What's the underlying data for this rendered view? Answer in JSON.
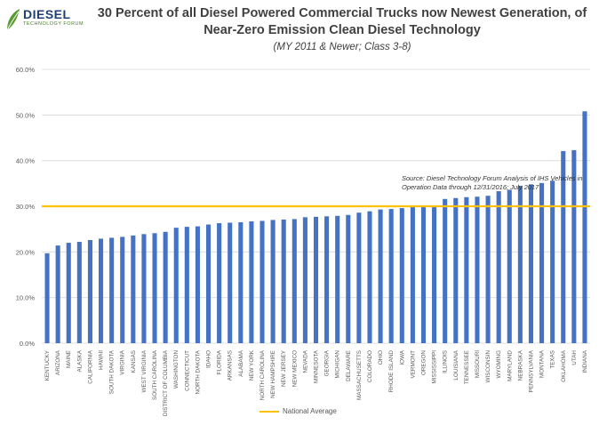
{
  "logo": {
    "word": "DIESEL",
    "sub": "TECHNOLOGY FORUM"
  },
  "title_line1": "30 Percent of all Diesel Powered Commercial Trucks now Newest Generation, of",
  "title_line2": "Near-Zero Emission Clean Diesel Technology",
  "subtitle": "(MY 2011 & Newer; Class 3-8)",
  "source_text": "Source:  Diesel Technology Forum Analysis of IHS Vehicles in Operation Data through 12/31/2016; July 2017",
  "legend_label": "National Average",
  "colors": {
    "bar": "#4472c4",
    "average_line": "#ffc000",
    "grid": "#d9d9d9",
    "axis_text": "#595959"
  },
  "chart_data": {
    "type": "bar",
    "title": "30 Percent of all Diesel Powered Commercial Trucks now Newest Generation, of Near-Zero Emission Clean Diesel Technology",
    "subtitle": "(MY 2011 & Newer; Class 3-8)",
    "xlabel": "",
    "ylabel": "",
    "ylim": [
      0,
      60
    ],
    "y_ticks": [
      0,
      10,
      20,
      30,
      40,
      50,
      60
    ],
    "y_tick_labels": [
      "0.0%",
      "10.0%",
      "20.0%",
      "30.0%",
      "40.0%",
      "50.0%",
      "60.0%"
    ],
    "grid": true,
    "legend_position": "bottom",
    "national_average": 30.0,
    "categories": [
      "KENTUCKY",
      "ARIZONA",
      "MAINE",
      "ALASKA",
      "CALIFORNIA",
      "HAWAII",
      "SOUTH DAKOTA",
      "VIRGINIA",
      "KANSAS",
      "WEST VIRGINIA",
      "SOUTH CAROLINA",
      "DISTRICT OF COLUMBIA",
      "WASHINGTON",
      "CONNECTICUT",
      "NORTH DAKOTA",
      "IDAHO",
      "FLORIDA",
      "ARKANSAS",
      "ALABAMA",
      "NEW YORK",
      "NORTH CAROLINA",
      "NEW HAMPSHIRE",
      "NEW JERSEY",
      "NEW MEXICO",
      "NEVADA",
      "MINNESOTA",
      "GEORGIA",
      "MICHIGAN",
      "DELAWARE",
      "MASSACHUSETTS",
      "COLORADO",
      "OHIO",
      "RHODE ISLAND",
      "IOWA",
      "VERMONT",
      "OREGON",
      "MISSISSIPPI",
      "ILLINOIS",
      "LOUISIANA",
      "TENNESSEE",
      "MISSOURI",
      "WISCONSIN",
      "WYOMING",
      "MARYLAND",
      "NEBRASKA",
      "PENNSYLVANIA",
      "MONTANA",
      "TEXAS",
      "OKLAHOMA",
      "UTAH",
      "INDIANA"
    ],
    "values": [
      19.7,
      21.4,
      22.0,
      22.2,
      22.6,
      22.9,
      23.1,
      23.3,
      23.6,
      23.9,
      24.1,
      24.4,
      25.3,
      25.5,
      25.6,
      26.0,
      26.3,
      26.4,
      26.5,
      26.7,
      26.8,
      27.0,
      27.1,
      27.2,
      27.6,
      27.7,
      27.8,
      27.9,
      28.1,
      28.6,
      28.9,
      29.3,
      29.4,
      29.6,
      29.8,
      29.9,
      30.0,
      31.6,
      31.8,
      32.0,
      32.1,
      32.3,
      33.3,
      33.6,
      34.5,
      34.8,
      35.1,
      35.6,
      42.1,
      42.3,
      50.8
    ]
  }
}
